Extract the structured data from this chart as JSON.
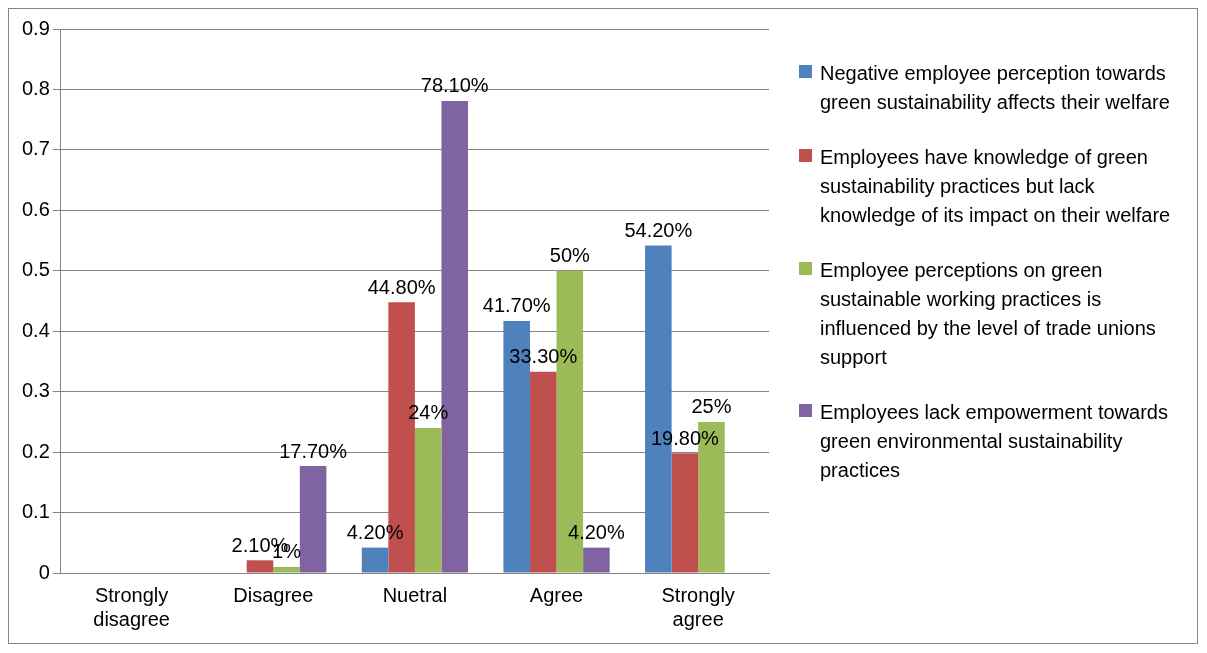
{
  "chart_data": {
    "type": "bar",
    "categories": [
      "Strongly disagree",
      "Disagree",
      "Nuetral",
      "Agree",
      "Strongly agree"
    ],
    "series": [
      {
        "name": "Negative employee perception towards green sustainability affects their welfare",
        "color": "#4f81bd",
        "values": [
          null,
          null,
          0.042,
          0.417,
          0.542
        ],
        "value_labels": [
          null,
          null,
          "4.20%",
          "41.70%",
          "54.20%"
        ]
      },
      {
        "name": "Employees have knowledge of green sustainability practices but lack knowledge of its impact on their welfare",
        "color": "#c0504d",
        "values": [
          null,
          0.021,
          0.448,
          0.333,
          0.198
        ],
        "value_labels": [
          null,
          "2.10%",
          "44.80%",
          "33.30%",
          "19.80%"
        ]
      },
      {
        "name": "Employee perceptions on green sustainable working practices is influenced by the level of trade unions  support",
        "color": "#9bbb59",
        "values": [
          null,
          0.01,
          0.24,
          0.5,
          0.25
        ],
        "value_labels": [
          null,
          "1%",
          "24%",
          "50%",
          "25%"
        ]
      },
      {
        "name": "Employees lack empowerment towards green environmental sustainability practices",
        "color": "#8064a2",
        "values": [
          null,
          0.177,
          0.781,
          0.042,
          null
        ],
        "value_labels": [
          null,
          "17.70%",
          "78.10%",
          "4.20%",
          null
        ]
      }
    ],
    "ylim": [
      0,
      0.9
    ],
    "yticks": [
      0,
      0.1,
      0.2,
      0.3,
      0.4,
      0.5,
      0.6,
      0.7,
      0.8,
      0.9
    ],
    "grid": "y",
    "legend": "right"
  }
}
